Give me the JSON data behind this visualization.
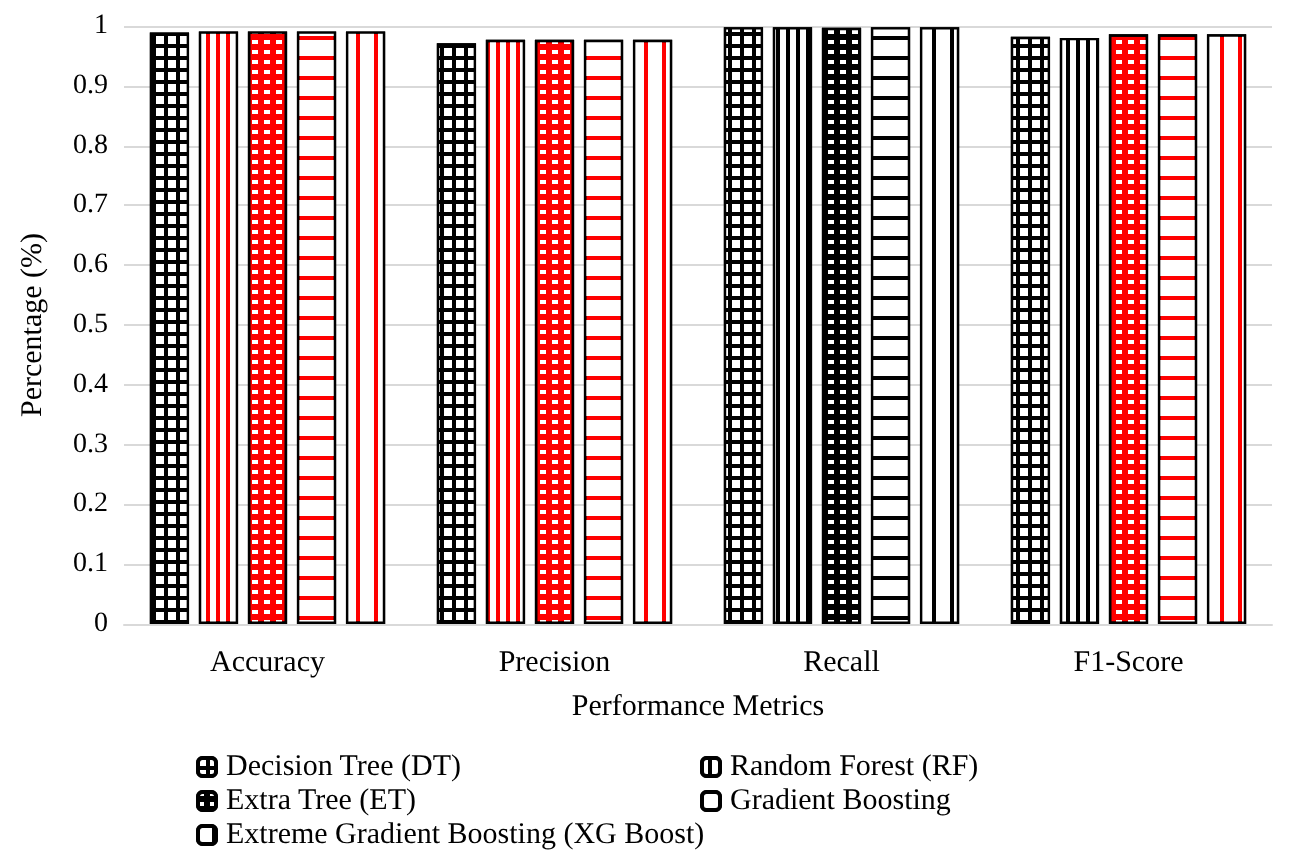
{
  "chart_data": {
    "type": "bar",
    "xlabel": "Performance Metrics",
    "ylabel": "Percentage (%)",
    "categories": [
      "Accuracy",
      "Precision",
      "Recall",
      "F1-Score"
    ],
    "series": [
      {
        "name": "Decision Tree (DT)",
        "color": "#000000",
        "colors": [
          "#000000",
          "#000000",
          "#000000",
          "#000000"
        ],
        "values": [
          0.989,
          0.971,
          0.998,
          0.982
        ]
      },
      {
        "name": "Random Forest (RF)",
        "color": "#000000",
        "colors": [
          "#ff0000",
          "#ff0000",
          "#000000",
          "#000000"
        ],
        "values": [
          0.991,
          0.977,
          0.998,
          0.98
        ]
      },
      {
        "name": "Extra Tree (ET)",
        "color": "#000000",
        "colors": [
          "#ff0000",
          "#ff0000",
          "#000000",
          "#ff0000"
        ],
        "values": [
          0.991,
          0.977,
          0.997,
          0.986
        ]
      },
      {
        "name": "Gradient Boosting",
        "color": "#000000",
        "colors": [
          "#ff0000",
          "#ff0000",
          "#000000",
          "#ff0000"
        ],
        "values": [
          0.991,
          0.977,
          0.998,
          0.986
        ]
      },
      {
        "name": "Extreme Gradient Boosting (XG Boost)",
        "color": "#000000",
        "colors": [
          "#ff0000",
          "#ff0000",
          "#000000",
          "#ff0000"
        ],
        "values": [
          0.991,
          0.977,
          0.998,
          0.986
        ]
      }
    ],
    "ylim": [
      0,
      1
    ],
    "yticks": [
      0,
      0.1,
      0.2,
      0.3,
      0.4,
      0.5,
      0.6,
      0.7,
      0.8,
      0.9,
      1
    ],
    "grid": "y",
    "legend": "bottom"
  }
}
